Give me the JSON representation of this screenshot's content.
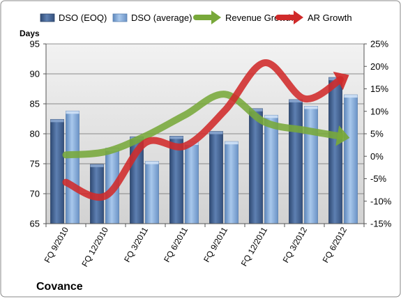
{
  "chart_data": {
    "type": "bar",
    "company": "Covance",
    "y_left_title": "Days",
    "categories": [
      "FQ 9/2010",
      "FQ 12/2010",
      "FQ 3/2011",
      "FQ 6/2011",
      "FQ 9/2011",
      "FQ 12/2011",
      "FQ 3/2012",
      "FQ 6/2012"
    ],
    "ylim_left": [
      65,
      95
    ],
    "yticks_left": [
      65,
      70,
      75,
      80,
      85,
      90,
      95
    ],
    "ylim_right": [
      -15,
      25
    ],
    "yticks_right": [
      -15,
      -10,
      -5,
      0,
      5,
      10,
      15,
      20,
      25
    ],
    "ytick_labels_right": [
      "-15%",
      "-10%",
      "-5%",
      "0%",
      "5%",
      "10%",
      "15%",
      "20%",
      "25%"
    ],
    "grid": true,
    "legend_position": "top",
    "series": [
      {
        "name": "DSO (EOQ)",
        "kind": "bar",
        "axis": "left",
        "color": "#4f6f9f",
        "values": [
          82.4,
          74.9,
          79.5,
          79.6,
          80.4,
          84.2,
          85.7,
          89.4
        ]
      },
      {
        "name": "DSO (average)",
        "kind": "bar",
        "axis": "left",
        "color": "#8eb3df",
        "values": [
          83.8,
          77.6,
          75.4,
          78.6,
          78.7,
          83.1,
          84.6,
          86.5
        ]
      },
      {
        "name": "Revenue Growth",
        "kind": "line-arrow",
        "axis": "right",
        "color": "#78a83a",
        "values": [
          0.3,
          1.0,
          4.5,
          9.2,
          13.8,
          7.6,
          5.8,
          4.3
        ]
      },
      {
        "name": "AR Growth",
        "kind": "line-arrow",
        "axis": "right",
        "color": "#d02a2a",
        "values": [
          -5.8,
          -8.8,
          3.0,
          2.3,
          10.2,
          20.8,
          12.8,
          17.5
        ]
      }
    ]
  }
}
